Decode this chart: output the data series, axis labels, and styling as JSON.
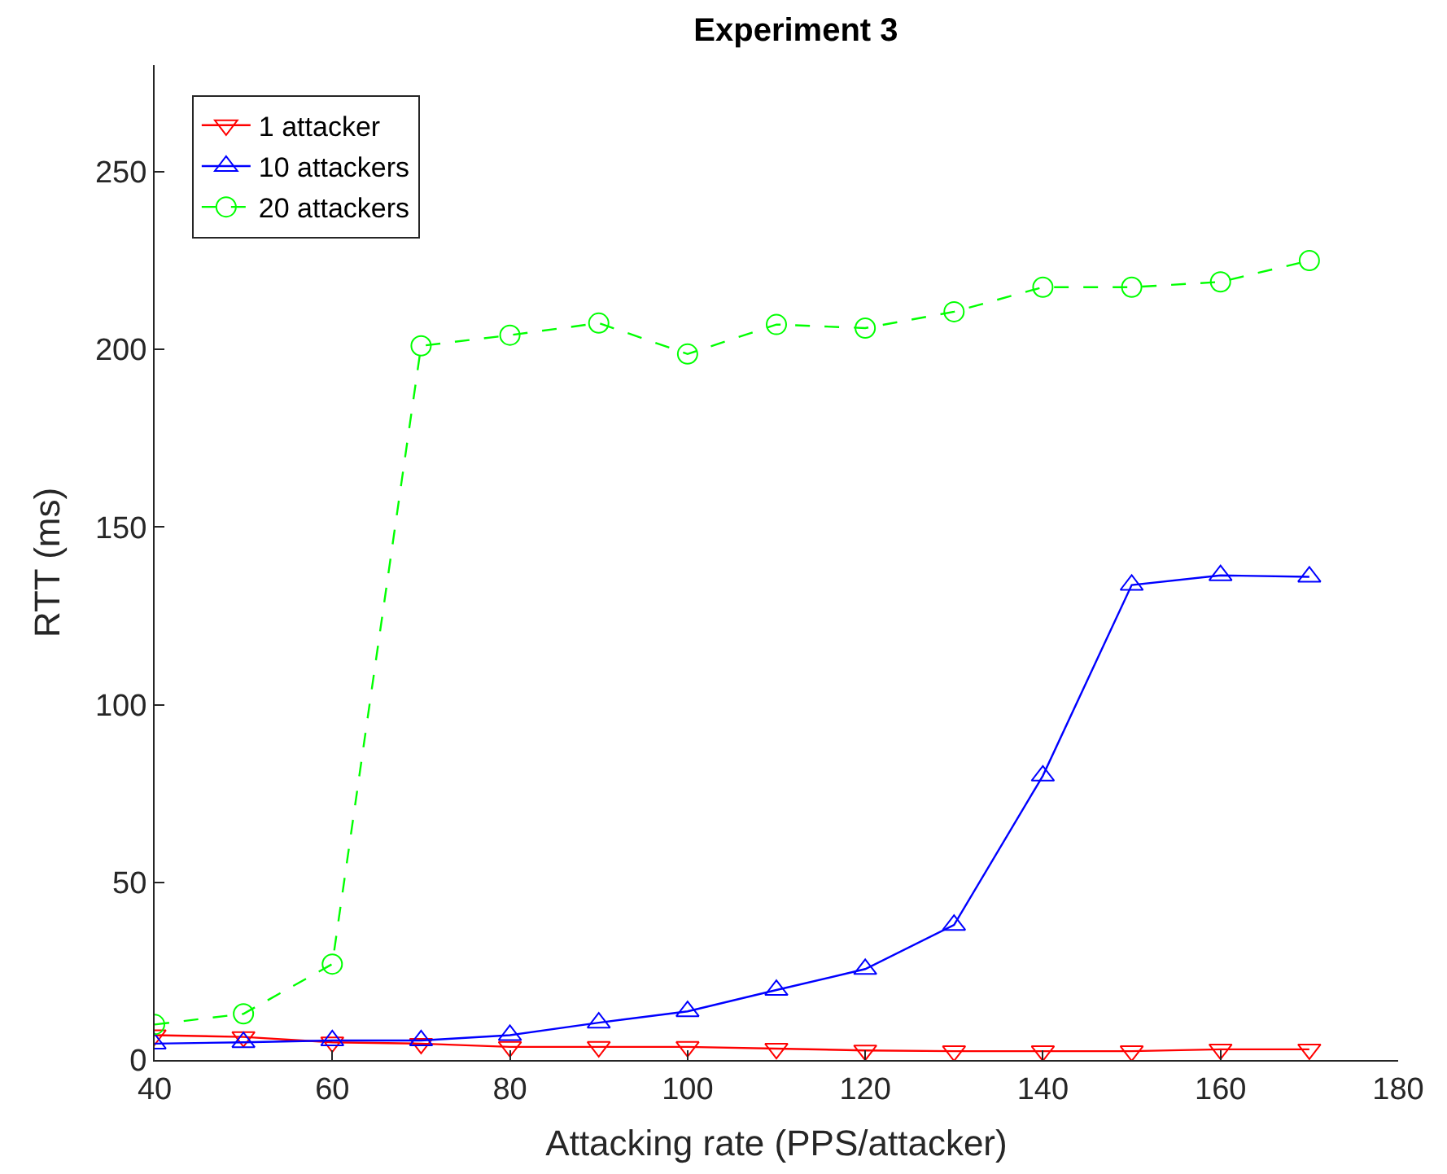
{
  "chart_data": {
    "type": "line",
    "title": "Experiment 3",
    "xlabel": "Attacking rate (PPS/attacker)",
    "ylabel": "RTT (ms)",
    "x": [
      40,
      50,
      60,
      70,
      80,
      90,
      100,
      110,
      120,
      130,
      140,
      150,
      160,
      170
    ],
    "series": [
      {
        "name": "1 attacker",
        "color": "#ff0000",
        "marker": "triangle-down",
        "line_style": "solid",
        "values": [
          7,
          6.5,
          5,
          4.6,
          3.7,
          3.7,
          3.7,
          3.2,
          2.7,
          2.5,
          2.5,
          2.5,
          3,
          3
        ]
      },
      {
        "name": "10 attackers",
        "color": "#0000ff",
        "marker": "triangle",
        "line_style": "solid",
        "values": [
          4.6,
          5,
          5.5,
          5.5,
          7,
          10.5,
          13.7,
          19.7,
          25.6,
          38,
          80,
          133.7,
          136.4,
          136
        ]
      },
      {
        "name": "20 attackers",
        "color": "#00ff00",
        "marker": "circle",
        "line_style": "dashed",
        "values": [
          10,
          13,
          27,
          201,
          204,
          207.4,
          198.7,
          207,
          206,
          210.6,
          217.5,
          217.5,
          219,
          225
        ]
      }
    ],
    "xlim": [
      40,
      180
    ],
    "xticks": [
      40,
      60,
      80,
      100,
      120,
      140,
      160,
      180
    ],
    "ylim": [
      0,
      280
    ],
    "yticks": [
      0,
      50,
      100,
      150,
      200,
      250
    ],
    "legend": "top left"
  }
}
